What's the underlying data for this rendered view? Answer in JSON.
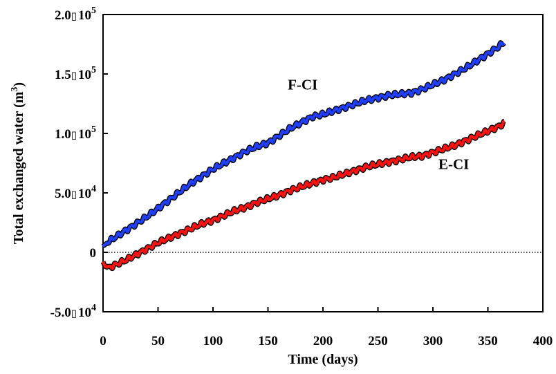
{
  "chart_data": {
    "type": "line",
    "xlabel": "Time (days)",
    "ylabel": "Total exchanged water (m3)",
    "ylabel_parts": {
      "main": "Total exchanged water (m",
      "sup": "3",
      "close": ")"
    },
    "xlim": [
      0,
      400
    ],
    "ylim": [
      -50000,
      200000
    ],
    "x_ticks": [
      0,
      50,
      100,
      150,
      200,
      250,
      300,
      350,
      400
    ],
    "x_tick_labels": [
      "0",
      "50",
      "100",
      "150",
      "200",
      "250",
      "300",
      "350",
      "400"
    ],
    "y_ticks": [
      -50000,
      0,
      50000,
      100000,
      150000,
      200000
    ],
    "y_tick_labels": [
      {
        "mantissa": "-5.0",
        "sep": "▯",
        "base": "10",
        "exp": "4"
      },
      {
        "mantissa": "0",
        "sep": "",
        "base": "",
        "exp": ""
      },
      {
        "mantissa": "5.0",
        "sep": "▯",
        "base": "10",
        "exp": "4"
      },
      {
        "mantissa": "1.0",
        "sep": "▯",
        "base": "10",
        "exp": "5"
      },
      {
        "mantissa": "1.5",
        "sep": "▯",
        "base": "10",
        "exp": "5"
      },
      {
        "mantissa": "2.0",
        "sep": "▯",
        "base": "10",
        "exp": "5"
      }
    ],
    "zero_line": "dotted",
    "grid": false,
    "series": [
      {
        "label": "F-CI",
        "color": "#1f3fff",
        "x": [
          0,
          5,
          10,
          20,
          30,
          40,
          50,
          60,
          70,
          80,
          90,
          100,
          110,
          120,
          130,
          140,
          150,
          160,
          170,
          180,
          190,
          200,
          210,
          220,
          230,
          240,
          250,
          260,
          270,
          280,
          290,
          300,
          310,
          320,
          330,
          340,
          350,
          360,
          365
        ],
        "y": [
          5000,
          9000,
          12000,
          18000,
          24000,
          30000,
          37000,
          44000,
          51000,
          58000,
          64000,
          70000,
          75000,
          80000,
          85000,
          89000,
          92000,
          98000,
          104000,
          109000,
          114000,
          116000,
          119000,
          122000,
          125000,
          128000,
          130000,
          132000,
          133000,
          134000,
          137000,
          141000,
          145000,
          150000,
          155000,
          161000,
          167000,
          173000,
          177000
        ]
      },
      {
        "label": "E-CI",
        "color": "#ff1010",
        "x": [
          0,
          2,
          5,
          10,
          20,
          30,
          40,
          50,
          60,
          70,
          80,
          90,
          100,
          110,
          120,
          130,
          140,
          150,
          160,
          170,
          180,
          190,
          200,
          210,
          220,
          230,
          240,
          250,
          260,
          270,
          280,
          290,
          300,
          310,
          320,
          330,
          340,
          350,
          360,
          365
        ],
        "y": [
          -8000,
          -12000,
          -13000,
          -11000,
          -7000,
          -2000,
          3000,
          8000,
          12000,
          16000,
          20000,
          24000,
          27000,
          31000,
          35000,
          38000,
          42000,
          45000,
          48000,
          52000,
          55000,
          58000,
          61000,
          63000,
          66000,
          69000,
          72000,
          74000,
          76000,
          78000,
          80000,
          81000,
          84000,
          87000,
          90000,
          94000,
          98000,
          102000,
          106000,
          109000
        ]
      }
    ],
    "annotations": [
      {
        "text": "F-CI",
        "x": 168,
        "y": 137000
      },
      {
        "text": "E-CI",
        "x": 305,
        "y": 70000
      }
    ]
  }
}
